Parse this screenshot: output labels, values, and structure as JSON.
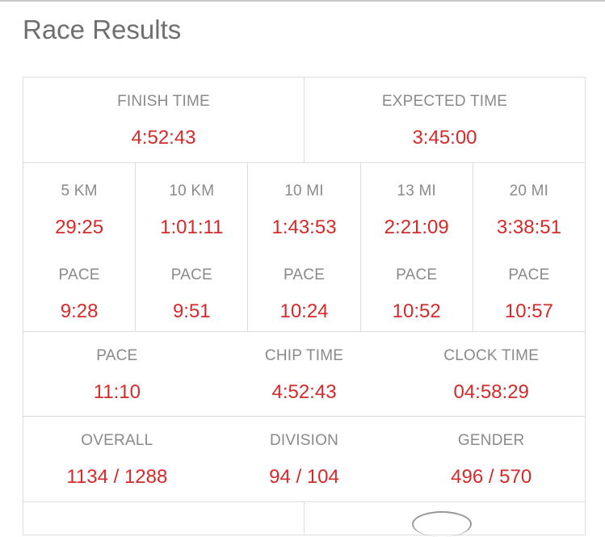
{
  "title": "Race Results",
  "row1": [
    {
      "label": "FINISH TIME",
      "value": "4:52:43"
    },
    {
      "label": "EXPECTED TIME",
      "value": "3:45:00"
    }
  ],
  "splits": [
    {
      "label": "5 KM",
      "value": "29:25",
      "pace_label": "PACE",
      "pace": "9:28"
    },
    {
      "label": "10 KM",
      "value": "1:01:11",
      "pace_label": "PACE",
      "pace": "9:51"
    },
    {
      "label": "10 MI",
      "value": "1:43:53",
      "pace_label": "PACE",
      "pace": "10:24"
    },
    {
      "label": "13 MI",
      "value": "2:21:09",
      "pace_label": "PACE",
      "pace": "10:52"
    },
    {
      "label": "20 MI",
      "value": "3:38:51",
      "pace_label": "PACE",
      "pace": "10:57"
    }
  ],
  "row3": [
    {
      "label": "PACE",
      "value": "11:10"
    },
    {
      "label": "CHIP TIME",
      "value": "4:52:43"
    },
    {
      "label": "CLOCK TIME",
      "value": "04:58:29"
    }
  ],
  "row4": [
    {
      "label": "OVERALL",
      "value": "1134 / 1288"
    },
    {
      "label": "DIVISION",
      "value": "94 / 104"
    },
    {
      "label": "GENDER",
      "value": "496 / 570"
    }
  ],
  "colors": {
    "value": "#d42a2a",
    "label": "#8a8a8a",
    "title": "#6f6f6f",
    "border": "#dddddd"
  }
}
